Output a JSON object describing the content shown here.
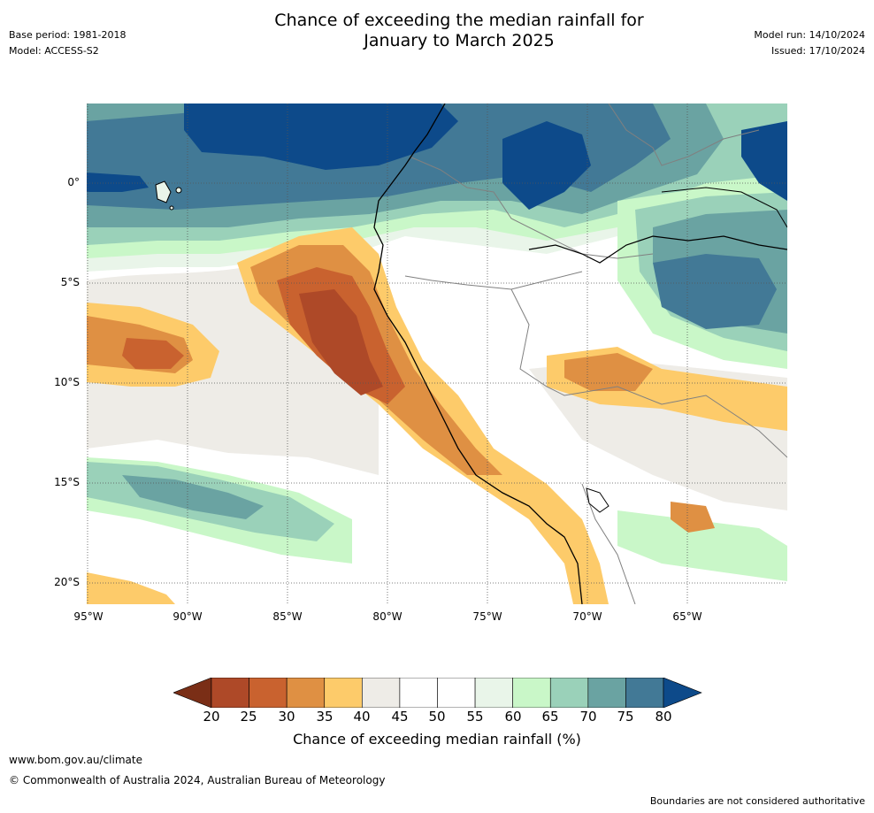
{
  "title": {
    "line1": "Chance of exceeding the median rainfall for",
    "line2": "January to March 2025"
  },
  "meta_left": {
    "base_period": "Base period: 1981-2018",
    "model": "Model: ACCESS-S2"
  },
  "meta_right": {
    "model_run": "Model run: 14/10/2024",
    "issued": "Issued: 17/10/2024"
  },
  "map": {
    "region": "Western South America and eastern tropical Pacific",
    "lat_range_deg": [
      3.8,
      -21.1
    ],
    "lon_range_deg": [
      -95.0,
      -60.0
    ],
    "lat_ticks": [
      "0°",
      "5°S",
      "10°S",
      "15°S",
      "20°S"
    ],
    "lon_ticks": [
      "95°W",
      "90°W",
      "85°W",
      "80°W",
      "75°W",
      "70°W",
      "65°W"
    ],
    "grid": true,
    "coastline_color": "#000000",
    "border_color": "#808080"
  },
  "colorbar": {
    "label": "Chance of exceeding median rainfall (%)",
    "ticks": [
      "20",
      "25",
      "30",
      "35",
      "40",
      "45",
      "50",
      "55",
      "60",
      "65",
      "70",
      "75",
      "80"
    ],
    "low_extend_color": "#7a2e16",
    "high_extend_color": "#0d4a8a",
    "bin_colors": [
      "#ae4928",
      "#c9622f",
      "#df9043",
      "#fdcb6a",
      "#eeece7",
      "#ffffff",
      "#ffffff",
      "#e9f5e9",
      "#c9f7c8",
      "#9ad1b9",
      "#6aa3a2",
      "#427996"
    ]
  },
  "footer": {
    "url": "www.bom.gov.au/climate",
    "copyright": "© Commonwealth of Australia 2024, Australian Bureau of Meteorology",
    "disclaimer": "Boundaries are not considered authoritative"
  }
}
